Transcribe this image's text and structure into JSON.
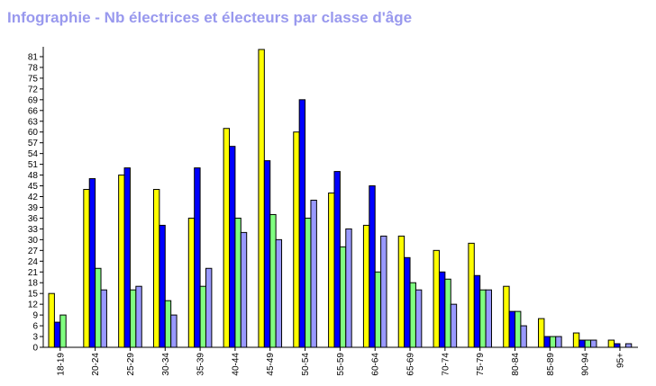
{
  "title": "Infographie - Nb électrices et électeurs par classe d'âge",
  "chart_data": {
    "type": "bar",
    "categories": [
      "18-19",
      "20-24",
      "25-29",
      "30-34",
      "35-39",
      "40-44",
      "45-49",
      "50-54",
      "55-59",
      "60-64",
      "65-69",
      "70-74",
      "75-79",
      "80-84",
      "85-89",
      "90-94",
      "95+"
    ],
    "series": [
      {
        "color": "#ffff00",
        "values": [
          15,
          44,
          48,
          44,
          36,
          61,
          83,
          60,
          43,
          34,
          31,
          27,
          29,
          17,
          8,
          4,
          2
        ]
      },
      {
        "color": "#0000ff",
        "values": [
          7,
          47,
          50,
          34,
          50,
          56,
          52,
          69,
          49,
          45,
          25,
          21,
          20,
          10,
          3,
          2,
          1
        ]
      },
      {
        "color": "#80ff80",
        "values": [
          9,
          22,
          16,
          13,
          17,
          36,
          37,
          36,
          28,
          21,
          18,
          19,
          16,
          10,
          3,
          2,
          0
        ]
      },
      {
        "color": "#9999ff",
        "values": [
          0,
          16,
          17,
          9,
          22,
          32,
          30,
          41,
          33,
          31,
          16,
          12,
          16,
          6,
          3,
          2,
          1
        ]
      }
    ],
    "yticks": [
      0,
      3,
      6,
      9,
      12,
      15,
      18,
      21,
      24,
      27,
      30,
      33,
      36,
      39,
      42,
      45,
      48,
      51,
      54,
      57,
      60,
      63,
      66,
      69,
      72,
      75,
      78,
      81
    ],
    "ylim": [
      0,
      83
    ]
  }
}
